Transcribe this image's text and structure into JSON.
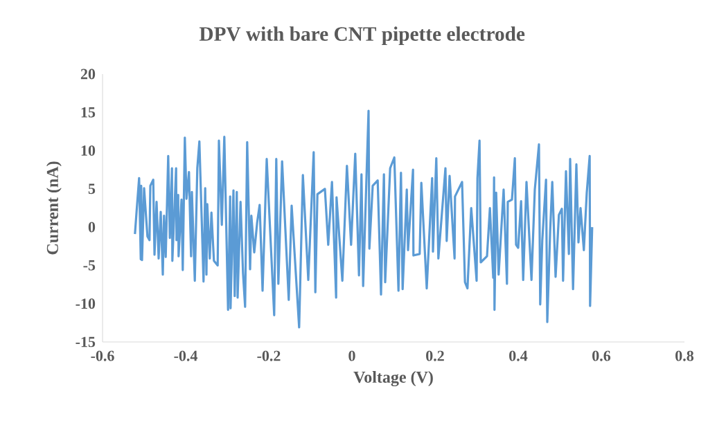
{
  "chart_data": {
    "type": "line",
    "title": "DPV with bare CNT pipette electrode",
    "xlabel": "Voltage (V)",
    "ylabel": "Current (nA)",
    "color": "#5b9bd5",
    "line_style": "solid",
    "xlim": [
      -0.6,
      0.8
    ],
    "ylim": [
      -15,
      20
    ],
    "xticks": [
      -0.6,
      -0.4,
      -0.2,
      0,
      0.2,
      0.4,
      0.6,
      0.8
    ],
    "yticks": [
      -15,
      -10,
      -5,
      0,
      5,
      10,
      15,
      20
    ],
    "x": [
      -0.522,
      -0.518,
      -0.512,
      -0.508,
      -0.507,
      -0.505,
      -0.5,
      -0.492,
      -0.487,
      -0.485,
      -0.478,
      -0.475,
      -0.47,
      -0.465,
      -0.46,
      -0.455,
      -0.452,
      -0.448,
      -0.442,
      -0.438,
      -0.433,
      -0.432,
      -0.423,
      -0.422,
      -0.418,
      -0.417,
      -0.41,
      -0.407,
      -0.402,
      -0.398,
      -0.392,
      -0.39,
      -0.387,
      -0.385,
      -0.378,
      -0.372,
      -0.367,
      -0.362,
      -0.357,
      -0.353,
      -0.35,
      -0.348,
      -0.342,
      -0.338,
      -0.332,
      -0.323,
      -0.32,
      -0.313,
      -0.307,
      -0.298,
      -0.293,
      -0.292,
      -0.285,
      -0.282,
      -0.277,
      -0.275,
      -0.268,
      -0.262,
      -0.257,
      -0.252,
      -0.245,
      -0.242,
      -0.235,
      -0.228,
      -0.222,
      -0.215,
      -0.205,
      -0.187,
      -0.182,
      -0.177,
      -0.168,
      -0.152,
      -0.145,
      -0.127,
      -0.118,
      -0.105,
      -0.092,
      -0.088,
      -0.083,
      -0.065,
      -0.057,
      -0.048,
      -0.038,
      -0.037,
      -0.023,
      -0.012,
      -0.002,
      0.008,
      0.017,
      0.023,
      0.027,
      0.04,
      0.042,
      0.05,
      0.062,
      0.07,
      0.077,
      0.08,
      0.092,
      0.102,
      0.112,
      0.118,
      0.122,
      0.132,
      0.135,
      0.147,
      0.148,
      0.163,
      0.167,
      0.18,
      0.193,
      0.195,
      0.203,
      0.208,
      0.225,
      0.228,
      0.235,
      0.247,
      0.248,
      0.265,
      0.272,
      0.278,
      0.287,
      0.3,
      0.302,
      0.307,
      0.31,
      0.325,
      0.332,
      0.34,
      0.342,
      0.343,
      0.347,
      0.353,
      0.365,
      0.373,
      0.375,
      0.385,
      0.392,
      0.395,
      0.4,
      0.407,
      0.412,
      0.42,
      0.432,
      0.44,
      0.45,
      0.453,
      0.458,
      0.467,
      0.47,
      0.477,
      0.482,
      0.49,
      0.498,
      0.505,
      0.508,
      0.515,
      0.522,
      0.525,
      0.532,
      0.54,
      0.545,
      0.55,
      0.558,
      0.565,
      0.572,
      0.573,
      0.578
    ],
    "values": [
      -0.9,
      2.1,
      6.4,
      -4.2,
      5.4,
      -4.3,
      5.1,
      -1.2,
      -1.7,
      5.4,
      6.2,
      -3.6,
      3.3,
      -4.1,
      2.0,
      -6.2,
      1.5,
      -3.9,
      9.3,
      -1.4,
      7.7,
      -4.4,
      7.7,
      -1.7,
      4.2,
      -3.8,
      3.6,
      -5.6,
      11.7,
      3.7,
      7.2,
      2.7,
      -3.8,
      4.6,
      -7.0,
      7.7,
      11.2,
      2.1,
      -7.1,
      5.1,
      -6.2,
      3.0,
      -4.1,
      1.9,
      -4.4,
      -5.0,
      11.3,
      0.3,
      11.8,
      -10.8,
      4.0,
      -10.6,
      4.8,
      -9.0,
      4.6,
      -9.2,
      3.3,
      -6.0,
      -10.4,
      11.1,
      -5.5,
      1.5,
      -3.3,
      0.6,
      2.9,
      -8.3,
      8.9,
      -11.5,
      8.9,
      -7.4,
      8.6,
      -9.5,
      2.8,
      -13.1,
      6.8,
      -6.9,
      9.8,
      -8.5,
      4.3,
      5.0,
      -2.3,
      5.9,
      -9.2,
      3.9,
      -7.0,
      8.0,
      -2.3,
      9.6,
      -6.3,
      6.9,
      -7.7,
      15.2,
      -2.8,
      5.4,
      6.1,
      -8.8,
      6.9,
      -7.2,
      7.7,
      9.1,
      -8.3,
      7.1,
      -8.1,
      4.9,
      -3.0,
      7.5,
      -3.7,
      -3.5,
      5.8,
      -8.0,
      6.4,
      -3.2,
      9.0,
      -4.1,
      7.7,
      -1.8,
      6.7,
      -4.1,
      4.0,
      5.9,
      -7.2,
      -8.0,
      2.5,
      -7.0,
      6.4,
      11.3,
      -4.6,
      -3.8,
      2.5,
      -6.6,
      6.5,
      -10.8,
      4.5,
      -6.2,
      4.9,
      -7.4,
      3.3,
      3.6,
      9.0,
      -2.3,
      -2.7,
      3.4,
      -6.9,
      5.9,
      -6.9,
      4.9,
      10.8,
      -10.1,
      -1.7,
      6.2,
      -12.4,
      -0.4,
      5.9,
      -6.5,
      1.6,
      2.4,
      -7.0,
      7.3,
      -3.5,
      8.9,
      -8.1,
      8.2,
      -2.0,
      2.5,
      -3.0,
      4.5,
      9.3,
      -10.3,
      0.0
    ]
  }
}
